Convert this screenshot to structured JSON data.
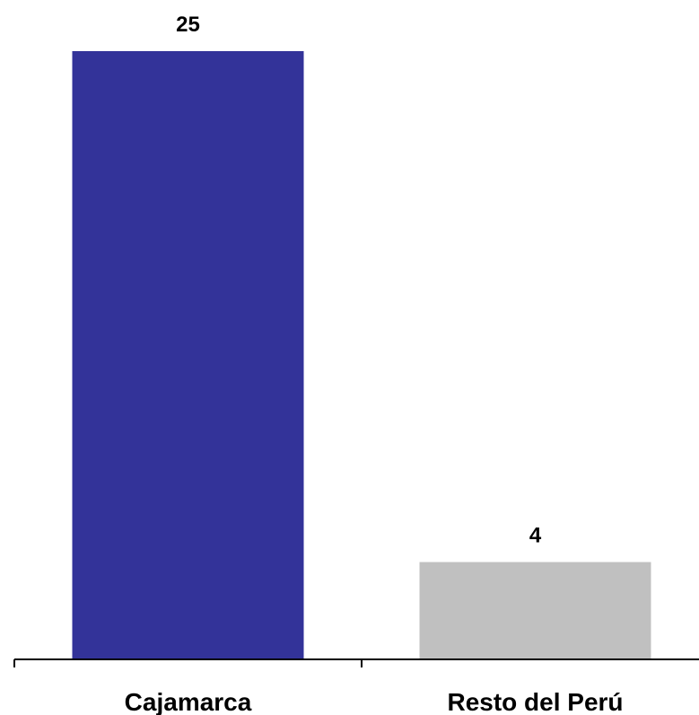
{
  "chart_data": {
    "type": "bar",
    "categories": [
      "Cajamarca",
      "Resto del Perú"
    ],
    "values": [
      25,
      4
    ],
    "data_labels": [
      "25",
      "4"
    ],
    "colors": [
      "#333399",
      "#c0c0c0"
    ],
    "title": "",
    "xlabel": "",
    "ylabel": "",
    "ylim": [
      0,
      25
    ],
    "grid": false,
    "legend": "none"
  }
}
